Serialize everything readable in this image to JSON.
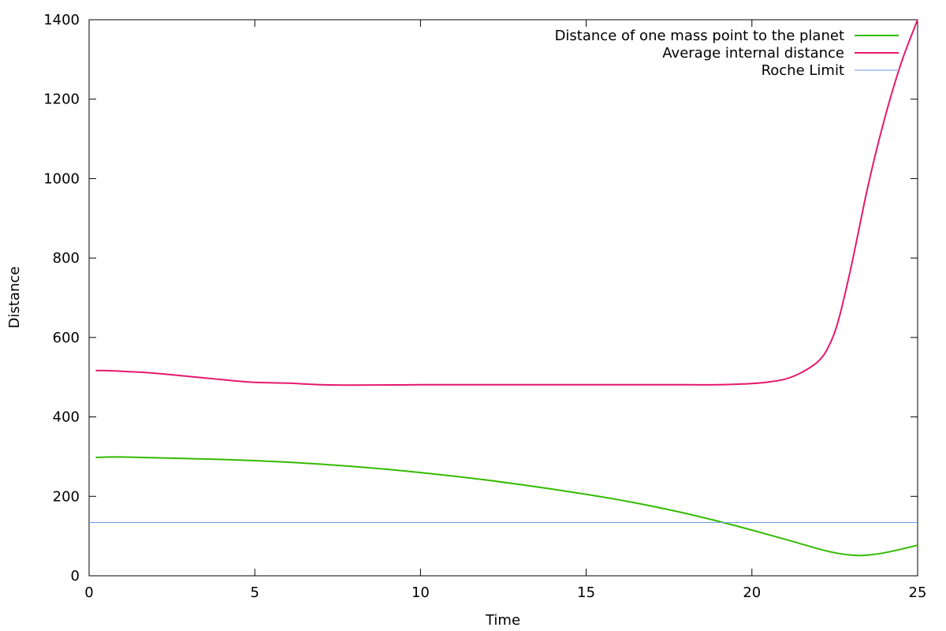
{
  "chart_data": {
    "type": "line",
    "title": "",
    "xlabel": "Time",
    "ylabel": "Distance",
    "xlim": [
      0,
      25
    ],
    "ylim": [
      0,
      1400
    ],
    "xticks": [
      0,
      5,
      10,
      15,
      20,
      25
    ],
    "yticks": [
      0,
      200,
      400,
      600,
      800,
      1000,
      1200,
      1400
    ],
    "xtick_labels": [
      "0",
      "5",
      "10",
      "15",
      "20",
      "25"
    ],
    "ytick_labels": [
      "0",
      "200",
      "400",
      "600",
      "800",
      "1000",
      "1200",
      "1400"
    ],
    "grid": false,
    "legend_position": "top-right",
    "series": [
      {
        "name": "Distance of one mass point to the planet",
        "color": "#33bb00",
        "x": [
          0.2,
          0.6,
          1,
          2,
          3,
          4,
          5,
          6,
          7,
          8,
          9,
          10,
          11,
          12,
          13,
          14,
          15,
          16,
          17,
          18,
          19,
          20,
          21,
          22,
          22.5,
          23,
          23.3,
          23.6,
          24,
          24.5,
          25
        ],
        "y": [
          298,
          299,
          299,
          297,
          295,
          293,
          290,
          286,
          281,
          275,
          268,
          260,
          251,
          241,
          230,
          218,
          205,
          191,
          175,
          157,
          137,
          115,
          92,
          68,
          58,
          52,
          51,
          53,
          58,
          67,
          77
        ]
      },
      {
        "name": "Average internal distance",
        "color": "#e6186e",
        "x": [
          0.2,
          1,
          2,
          3,
          3.5,
          4,
          4.5,
          5,
          6,
          7,
          8,
          10,
          12,
          14,
          16,
          18,
          19,
          20,
          20.5,
          21,
          21.5,
          22,
          22.3,
          22.6,
          23,
          23.5,
          24,
          24.5,
          25
        ],
        "y": [
          517,
          515,
          510,
          502,
          498,
          494,
          490,
          487,
          485,
          481,
          480,
          481,
          481,
          481,
          481,
          481,
          481,
          484,
          488,
          495,
          512,
          540,
          575,
          640,
          780,
          980,
          1150,
          1290,
          1400
        ]
      },
      {
        "name": "Roche Limit",
        "color": "#6f9ee8",
        "x": [
          0,
          25
        ],
        "y": [
          134,
          134
        ]
      }
    ]
  }
}
